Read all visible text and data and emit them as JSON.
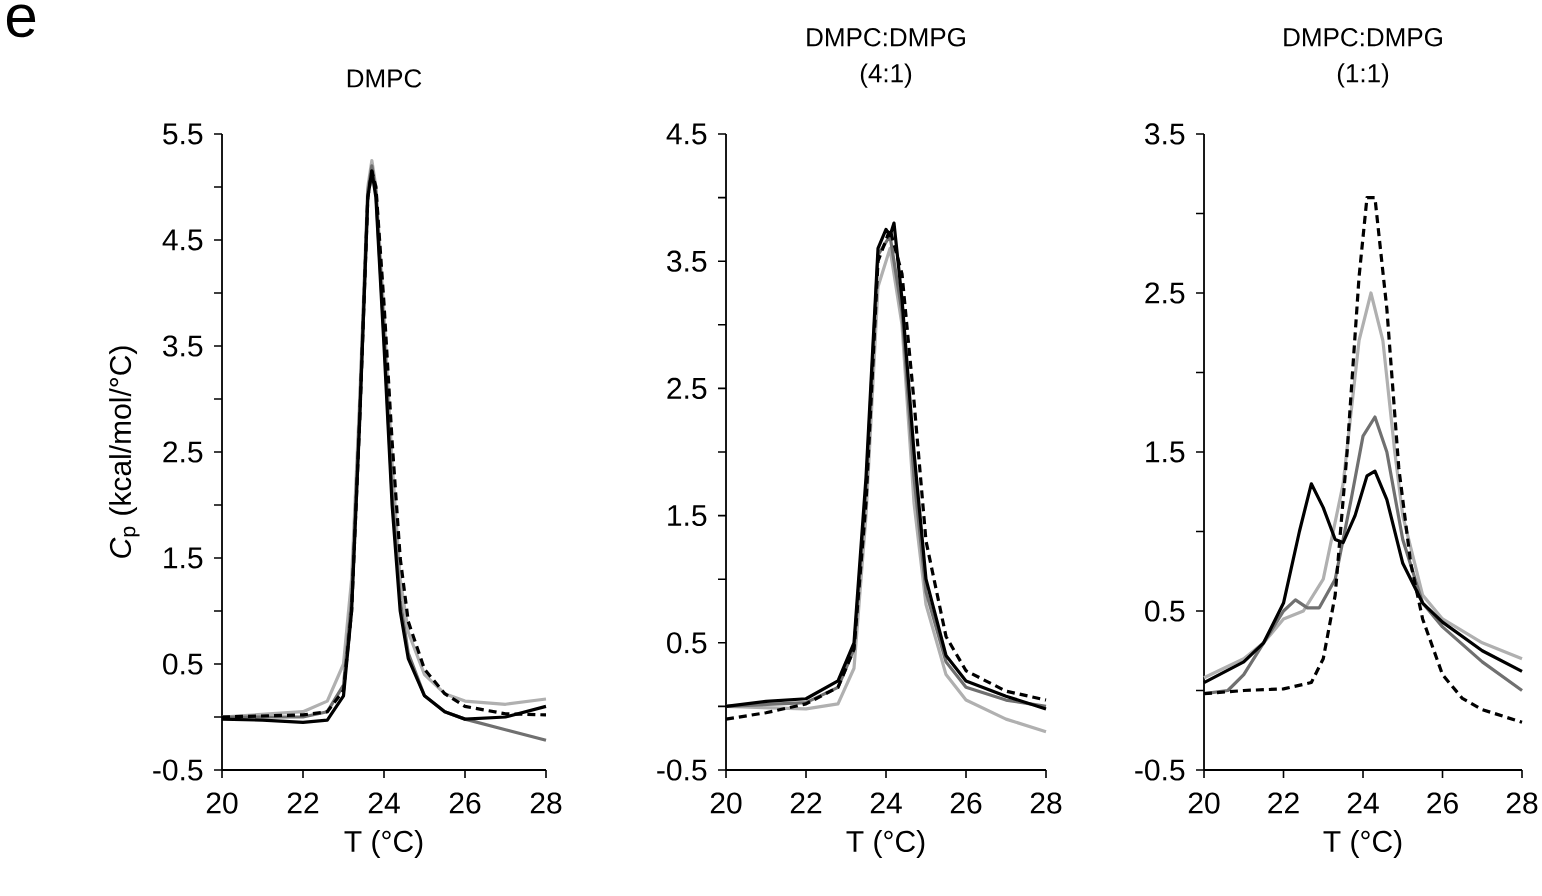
{
  "chart_data": [
    {
      "type": "line",
      "title": "DMPC",
      "xlabel": "T (°C)",
      "ylabel": "*C*$_{p}$ (kcal/mol/°C)",
      "annotations": [
        "e"
      ],
      "xlim": [
        20,
        28
      ],
      "xticks": [
        20,
        22,
        24,
        26,
        28
      ],
      "ylim": [
        -0.5,
        5.5
      ],
      "yticks": [
        -0.5,
        {
          "value": 0,
          "label": null
        },
        0.5,
        {
          "value": 1,
          "label": null
        },
        1.5,
        {
          "value": 2,
          "label": null
        },
        2.5,
        {
          "value": 3,
          "label": null
        },
        3.5,
        {
          "value": 4,
          "label": null
        },
        4.5,
        {
          "value": 5,
          "label": null
        },
        5.5
      ],
      "series": [
        {
          "color": "#b0b0b0",
          "x": [
            20,
            22,
            22.6,
            23,
            23.2,
            23.4,
            23.6,
            23.7,
            23.8,
            24,
            24.2,
            24.4,
            24.6,
            25,
            25.5,
            26,
            27,
            28
          ],
          "values": [
            0,
            0.05,
            0.15,
            0.5,
            1.3,
            3.0,
            5.0,
            5.25,
            5.0,
            3.8,
            2.4,
            1.3,
            0.8,
            0.4,
            0.22,
            0.15,
            0.12,
            0.17
          ]
        },
        {
          "color": "#707070",
          "x": [
            20,
            22,
            22.6,
            23,
            23.2,
            23.4,
            23.6,
            23.7,
            23.8,
            24,
            24.2,
            24.4,
            24.6,
            25,
            25.5,
            26,
            27,
            28
          ],
          "values": [
            0,
            0,
            0.05,
            0.3,
            1.1,
            2.9,
            4.95,
            5.2,
            4.95,
            3.6,
            2.1,
            1.1,
            0.6,
            0.2,
            0.05,
            -0.02,
            -0.12,
            -0.22
          ]
        },
        {
          "color": "#000000",
          "line_style": "dashed",
          "x": [
            20,
            22,
            22.6,
            23,
            23.2,
            23.4,
            23.6,
            23.7,
            23.8,
            24,
            24.2,
            24.4,
            24.6,
            25,
            25.5,
            26,
            27,
            28
          ],
          "values": [
            0,
            0.02,
            0.05,
            0.25,
            1.0,
            2.8,
            4.9,
            5.15,
            5.0,
            3.9,
            2.6,
            1.5,
            0.9,
            0.45,
            0.22,
            0.1,
            0.03,
            0.02
          ]
        },
        {
          "color": "#000000",
          "x": [
            20,
            21,
            22,
            22.6,
            23,
            23.2,
            23.4,
            23.6,
            23.7,
            23.8,
            24,
            24.2,
            24.4,
            24.6,
            25,
            25.5,
            26,
            27,
            28
          ],
          "values": [
            -0.02,
            -0.03,
            -0.05,
            -0.03,
            0.2,
            1.0,
            2.8,
            4.9,
            5.15,
            4.9,
            3.5,
            2.0,
            1.0,
            0.55,
            0.2,
            0.05,
            -0.02,
            0,
            0.1
          ]
        }
      ]
    },
    {
      "type": "line",
      "title": "DMPC:DMPG",
      "subtitle": "(4:1)",
      "xlabel": "T (°C)",
      "xlim": [
        20,
        28
      ],
      "xticks": [
        20,
        22,
        24,
        26,
        28
      ],
      "ylim": [
        -0.5,
        4.5
      ],
      "yticks": [
        -0.5,
        {
          "value": 0,
          "label": null
        },
        0.5,
        {
          "value": 1,
          "label": null
        },
        1.5,
        {
          "value": 2,
          "label": null
        },
        2.5,
        {
          "value": 3,
          "label": null
        },
        3.5,
        {
          "value": 4,
          "label": null
        },
        4.5
      ],
      "series": [
        {
          "color": "#b0b0b0",
          "x": [
            20,
            22,
            22.8,
            23.2,
            23.5,
            23.8,
            24.1,
            24.4,
            24.7,
            25,
            25.5,
            26,
            27,
            28
          ],
          "values": [
            0,
            -0.02,
            0.02,
            0.3,
            1.5,
            3.3,
            3.6,
            3.0,
            1.6,
            0.8,
            0.25,
            0.05,
            -0.1,
            -0.2
          ]
        },
        {
          "color": "#707070",
          "x": [
            20,
            22,
            22.8,
            23.2,
            23.5,
            23.8,
            24.1,
            24.4,
            24.7,
            25,
            25.5,
            26,
            27,
            28
          ],
          "values": [
            0,
            0.03,
            0.15,
            0.45,
            1.7,
            3.55,
            3.7,
            3.1,
            1.8,
            0.9,
            0.35,
            0.15,
            0.05,
            0
          ]
        },
        {
          "color": "#000000",
          "line_style": "dashed",
          "x": [
            20,
            21,
            22,
            22.8,
            23.2,
            23.5,
            23.8,
            24.1,
            24.4,
            24.7,
            25,
            25.5,
            26,
            27,
            28
          ],
          "values": [
            -0.1,
            -0.05,
            0.02,
            0.15,
            0.45,
            1.6,
            3.5,
            3.75,
            3.4,
            2.4,
            1.3,
            0.55,
            0.28,
            0.12,
            0.05
          ]
        },
        {
          "color": "#000000",
          "x": [
            20,
            21,
            22,
            22.8,
            23.2,
            23.5,
            23.8,
            24.0,
            24.1,
            24.2,
            24.4,
            24.7,
            25,
            25.5,
            26,
            27,
            28
          ],
          "values": [
            0,
            0.04,
            0.06,
            0.2,
            0.5,
            1.8,
            3.6,
            3.75,
            3.7,
            3.8,
            3.2,
            2.0,
            1.0,
            0.4,
            0.2,
            0.08,
            -0.02
          ]
        }
      ]
    },
    {
      "type": "line",
      "title": "DMPC:DMPG",
      "subtitle": "(1:1)",
      "xlabel": "T (°C)",
      "xlim": [
        20,
        28
      ],
      "xticks": [
        20,
        22,
        24,
        26,
        28
      ],
      "ylim": [
        -0.5,
        3.5
      ],
      "yticks": [
        -0.5,
        {
          "value": 0,
          "label": null
        },
        0.5,
        {
          "value": 1,
          "label": null
        },
        1.5,
        {
          "value": 2,
          "label": null
        },
        2.5,
        {
          "value": 3,
          "label": null
        },
        3.5
      ],
      "series": [
        {
          "color": "#b0b0b0",
          "x": [
            20,
            21,
            21.5,
            22,
            22.5,
            23,
            23.5,
            23.9,
            24.2,
            24.5,
            24.8,
            25,
            25.5,
            26,
            27,
            28
          ],
          "values": [
            0.08,
            0.2,
            0.3,
            0.45,
            0.5,
            0.7,
            1.3,
            2.2,
            2.5,
            2.2,
            1.5,
            1.1,
            0.6,
            0.45,
            0.3,
            0.2
          ]
        },
        {
          "color": "#707070",
          "x": [
            20,
            20.6,
            21,
            21.5,
            22,
            22.3,
            22.6,
            22.9,
            23.3,
            23.7,
            24.0,
            24.3,
            24.6,
            25,
            25.5,
            26,
            27,
            28
          ],
          "values": [
            -0.02,
            0,
            0.1,
            0.3,
            0.5,
            0.57,
            0.52,
            0.52,
            0.7,
            1.2,
            1.6,
            1.72,
            1.5,
            0.95,
            0.55,
            0.4,
            0.18,
            0
          ]
        },
        {
          "color": "#000000",
          "line_style": "dashed",
          "x": [
            20,
            21,
            22,
            22.7,
            23,
            23.3,
            23.6,
            23.9,
            24.1,
            24.3,
            24.6,
            24.9,
            25.2,
            25.5,
            26,
            26.5,
            27,
            28
          ],
          "values": [
            -0.02,
            0,
            0.01,
            0.05,
            0.2,
            0.6,
            1.5,
            2.6,
            3.1,
            3.1,
            2.4,
            1.4,
            0.8,
            0.45,
            0.1,
            -0.05,
            -0.12,
            -0.2
          ]
        },
        {
          "color": "#000000",
          "x": [
            20,
            21,
            21.5,
            22,
            22.4,
            22.7,
            23.0,
            23.3,
            23.5,
            23.8,
            24.1,
            24.3,
            24.6,
            25,
            25.5,
            26,
            27,
            28
          ],
          "values": [
            0.05,
            0.18,
            0.3,
            0.55,
            1.0,
            1.3,
            1.15,
            0.95,
            0.93,
            1.1,
            1.35,
            1.38,
            1.2,
            0.8,
            0.55,
            0.43,
            0.25,
            0.12
          ]
        }
      ]
    }
  ]
}
